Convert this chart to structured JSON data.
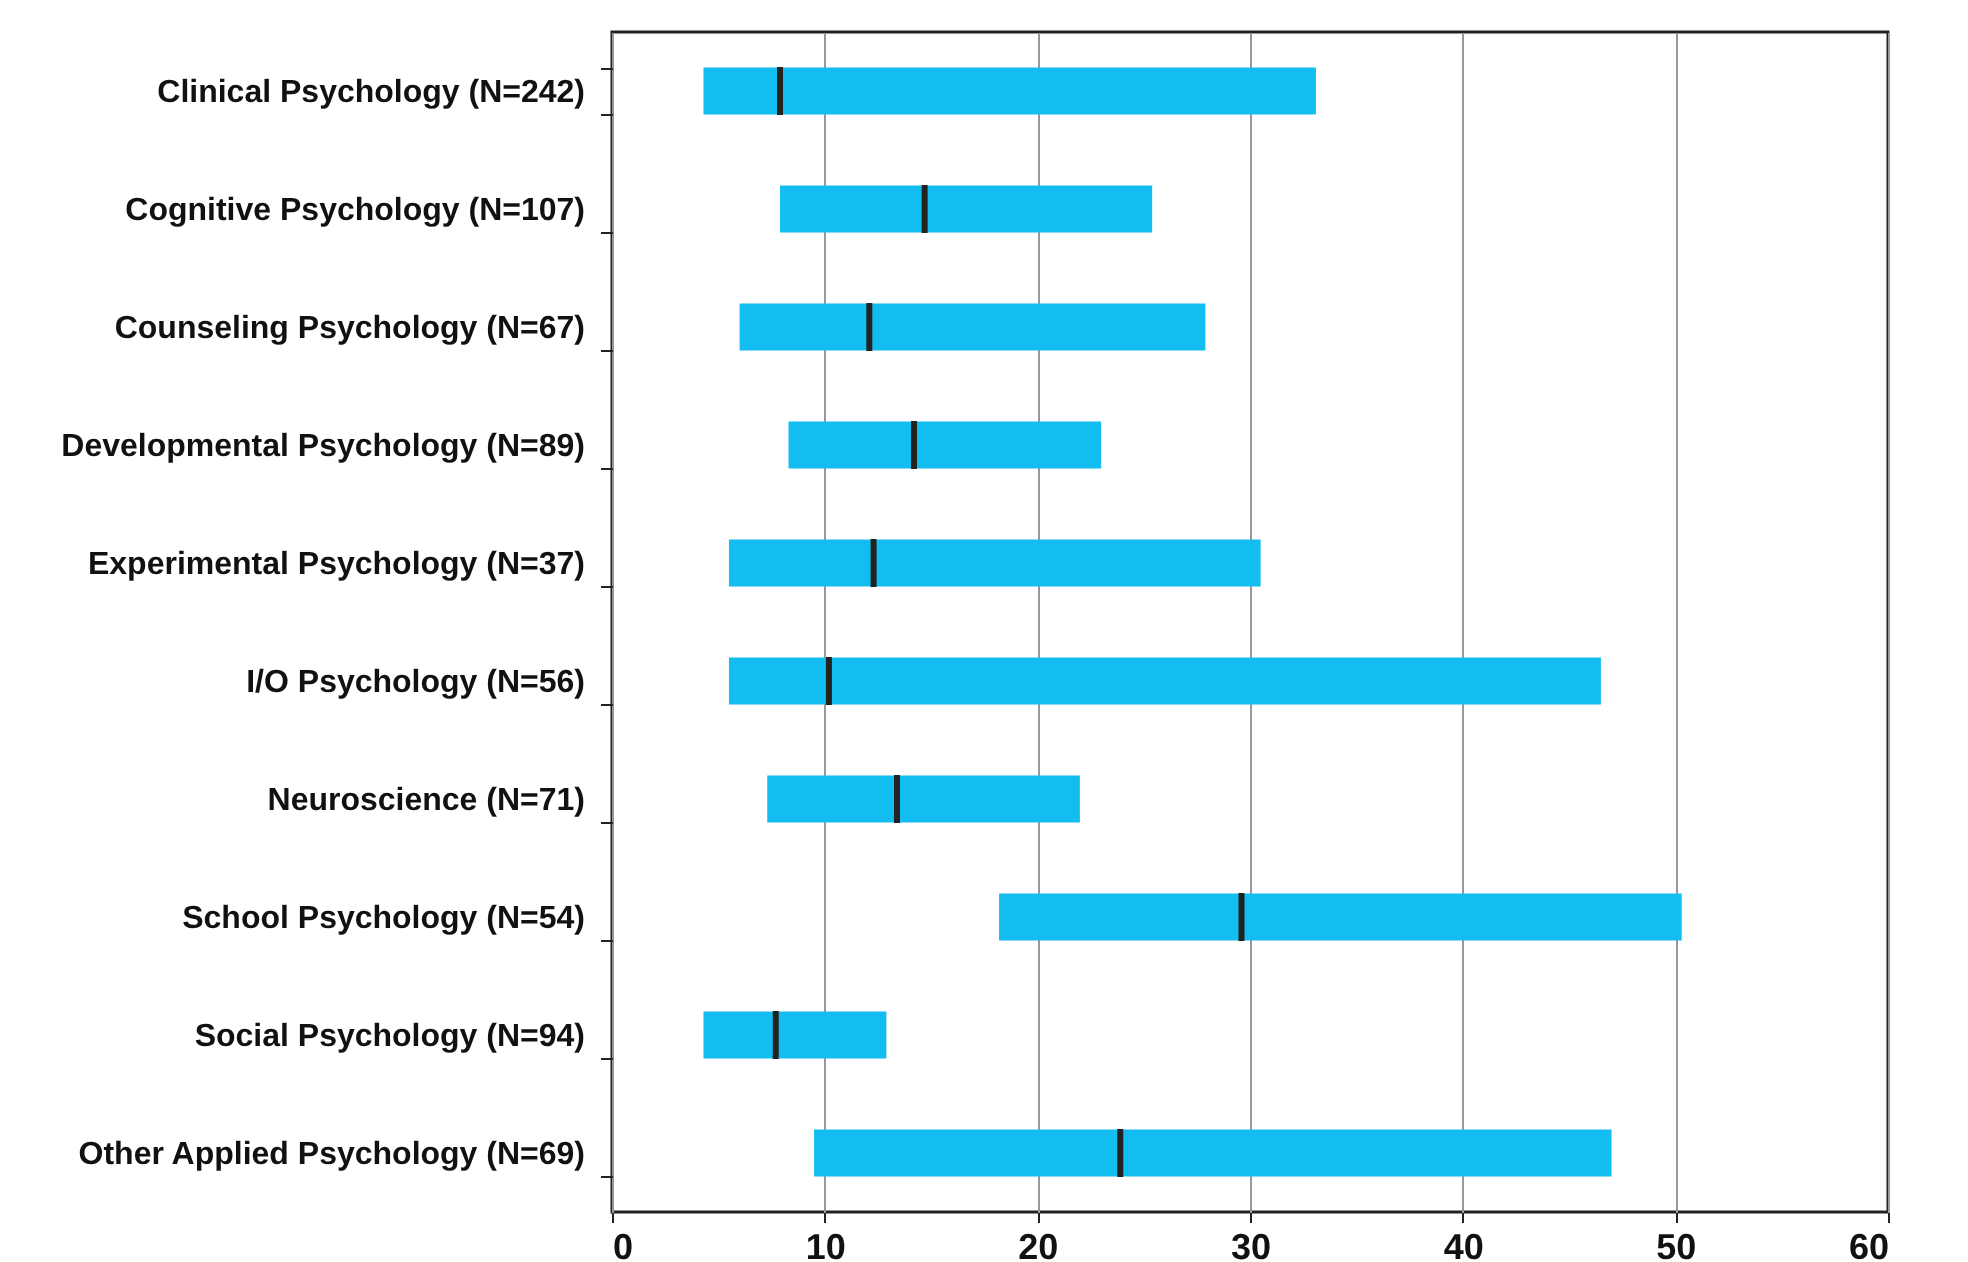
{
  "chart_data": {
    "type": "box",
    "orientation": "horizontal",
    "color": "#14bdf0",
    "categories": [
      "Clinical Psychology (N=242)",
      "Cognitive Psychology (N=107)",
      "Counseling Psychology (N=67)",
      "Developmental Psychology (N=89)",
      "Experimental Psychology (N=37)",
      "I/O Psychology (N=56)",
      "Neuroscience (N=71)",
      "School Psychology (N=54)",
      "Social Psychology (N=94)",
      "Other Applied Psychology (N=69)"
    ],
    "boxes": [
      {
        "low": 4.3,
        "q1": 4.3,
        "median": 7.9,
        "q3": 33.1,
        "high": 33.1
      },
      {
        "low": 7.9,
        "q1": 7.9,
        "median": 14.7,
        "q3": 25.4,
        "high": 25.4
      },
      {
        "low": 6.0,
        "q1": 6.0,
        "median": 12.1,
        "q3": 27.9,
        "high": 27.9
      },
      {
        "low": 8.3,
        "q1": 8.3,
        "median": 14.2,
        "q3": 23.0,
        "high": 23.0
      },
      {
        "low": 5.5,
        "q1": 5.5,
        "median": 12.3,
        "q3": 30.5,
        "high": 30.5
      },
      {
        "low": 5.5,
        "q1": 5.5,
        "median": 10.2,
        "q3": 46.5,
        "high": 46.5
      },
      {
        "low": 7.3,
        "q1": 7.3,
        "median": 13.4,
        "q3": 22.0,
        "high": 22.0
      },
      {
        "low": 18.2,
        "q1": 18.2,
        "median": 29.6,
        "q3": 50.3,
        "high": 50.3
      },
      {
        "low": 4.3,
        "q1": 4.3,
        "median": 7.7,
        "q3": 12.9,
        "high": 12.9
      },
      {
        "low": 9.5,
        "q1": 9.5,
        "median": 23.9,
        "q3": 47.0,
        "high": 47.0
      }
    ],
    "xlim": [
      0,
      60
    ],
    "xticks": [
      0,
      10,
      20,
      30,
      40,
      50,
      60
    ],
    "grid": "x"
  }
}
